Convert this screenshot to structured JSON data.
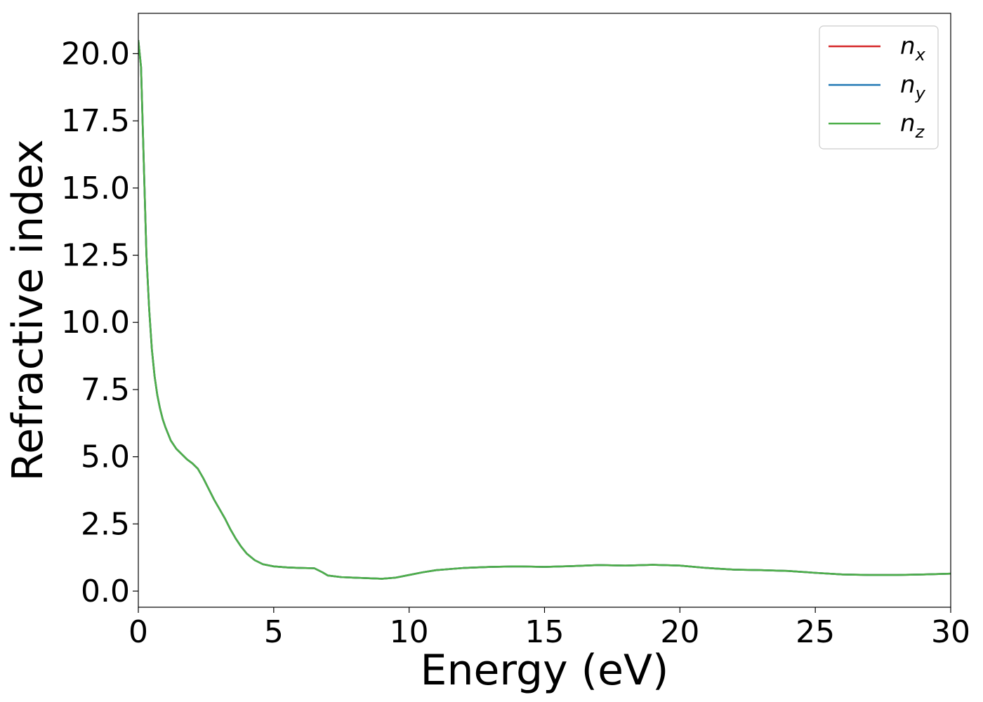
{
  "chart_data": {
    "type": "line",
    "title": "",
    "xlabel": "Energy (eV)",
    "ylabel": "Refractive index",
    "xlim": [
      0,
      30
    ],
    "ylim": [
      -0.6,
      21.5
    ],
    "xticks": [
      0,
      5,
      10,
      15,
      20,
      25,
      30
    ],
    "xtick_labels": [
      "0",
      "5",
      "10",
      "15",
      "20",
      "25",
      "30"
    ],
    "yticks": [
      0,
      2.5,
      5,
      7.5,
      10,
      12.5,
      15,
      17.5,
      20
    ],
    "ytick_labels": [
      "0.0",
      "2.5",
      "5.0",
      "7.5",
      "10.0",
      "12.5",
      "15.0",
      "17.5",
      "20.0"
    ],
    "grid": false,
    "legend_position": "top-right",
    "x": [
      0,
      0.1,
      0.2,
      0.3,
      0.4,
      0.5,
      0.6,
      0.7,
      0.8,
      0.9,
      1.0,
      1.2,
      1.4,
      1.6,
      1.8,
      2.0,
      2.2,
      2.4,
      2.6,
      2.8,
      3.0,
      3.2,
      3.4,
      3.6,
      3.8,
      4.0,
      4.3,
      4.6,
      5.0,
      5.5,
      6.0,
      6.5,
      6.8,
      7.0,
      7.5,
      8.0,
      8.5,
      9.0,
      9.5,
      10.0,
      10.5,
      11.0,
      11.5,
      12.0,
      13.0,
      14.0,
      15.0,
      16.0,
      17.0,
      18.0,
      19.0,
      20.0,
      21.0,
      22.0,
      23.0,
      24.0,
      25.0,
      26.0,
      27.0,
      28.0,
      29.0,
      30.0
    ],
    "series": [
      {
        "name": "n_x",
        "label_base": "n",
        "label_sub": "x",
        "color": "#d62728",
        "values": [
          20.5,
          19.5,
          16.0,
          12.5,
          10.5,
          9.0,
          8.0,
          7.3,
          6.8,
          6.4,
          6.1,
          5.6,
          5.3,
          5.1,
          4.9,
          4.75,
          4.55,
          4.2,
          3.8,
          3.4,
          3.05,
          2.7,
          2.3,
          1.95,
          1.65,
          1.4,
          1.15,
          1.0,
          0.92,
          0.88,
          0.86,
          0.85,
          0.7,
          0.58,
          0.52,
          0.5,
          0.48,
          0.46,
          0.5,
          0.6,
          0.7,
          0.78,
          0.82,
          0.86,
          0.9,
          0.92,
          0.9,
          0.93,
          0.97,
          0.95,
          0.98,
          0.95,
          0.86,
          0.8,
          0.78,
          0.75,
          0.68,
          0.62,
          0.6,
          0.6,
          0.62,
          0.65
        ]
      },
      {
        "name": "n_y",
        "label_base": "n",
        "label_sub": "y",
        "color": "#1f77b4",
        "values": [
          20.5,
          19.5,
          16.0,
          12.5,
          10.5,
          9.0,
          8.0,
          7.3,
          6.8,
          6.4,
          6.1,
          5.6,
          5.3,
          5.1,
          4.9,
          4.75,
          4.55,
          4.2,
          3.8,
          3.4,
          3.05,
          2.7,
          2.3,
          1.95,
          1.65,
          1.4,
          1.15,
          1.0,
          0.92,
          0.88,
          0.86,
          0.85,
          0.7,
          0.58,
          0.52,
          0.5,
          0.48,
          0.46,
          0.5,
          0.6,
          0.7,
          0.78,
          0.82,
          0.86,
          0.9,
          0.92,
          0.9,
          0.93,
          0.97,
          0.95,
          0.98,
          0.95,
          0.86,
          0.8,
          0.78,
          0.75,
          0.68,
          0.62,
          0.6,
          0.6,
          0.62,
          0.65
        ]
      },
      {
        "name": "n_z",
        "label_base": "n",
        "label_sub": "z",
        "color": "#4daf4a",
        "values": [
          20.5,
          19.5,
          16.0,
          12.5,
          10.5,
          9.0,
          8.0,
          7.3,
          6.8,
          6.4,
          6.1,
          5.6,
          5.3,
          5.1,
          4.9,
          4.75,
          4.55,
          4.2,
          3.8,
          3.4,
          3.05,
          2.7,
          2.3,
          1.95,
          1.65,
          1.4,
          1.15,
          1.0,
          0.92,
          0.88,
          0.86,
          0.85,
          0.7,
          0.58,
          0.52,
          0.5,
          0.48,
          0.46,
          0.5,
          0.6,
          0.7,
          0.78,
          0.82,
          0.86,
          0.9,
          0.92,
          0.9,
          0.93,
          0.97,
          0.95,
          0.98,
          0.95,
          0.86,
          0.8,
          0.78,
          0.75,
          0.68,
          0.62,
          0.6,
          0.6,
          0.62,
          0.65
        ]
      }
    ]
  }
}
